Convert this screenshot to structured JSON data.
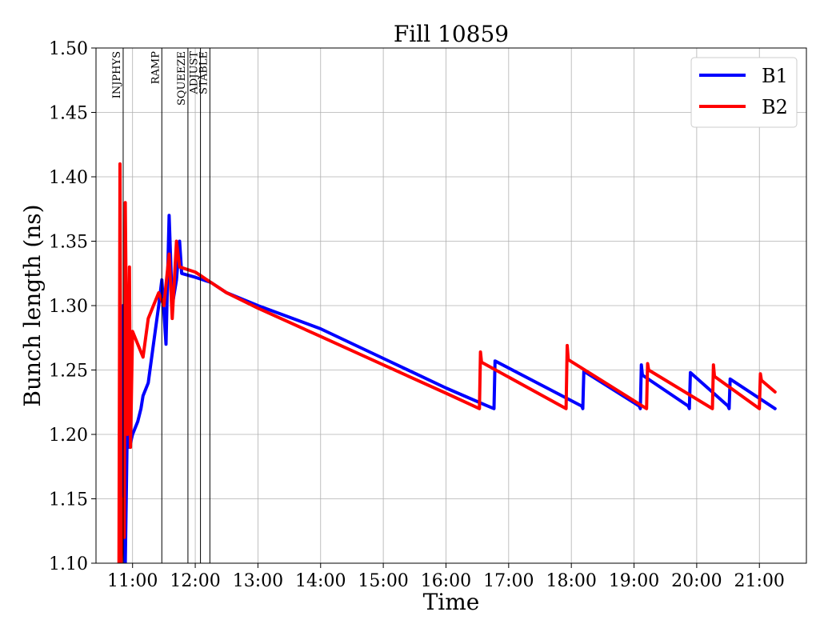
{
  "chart_data": {
    "type": "line",
    "title": "Fill 10859",
    "xlabel": "Time",
    "ylabel": "Bunch length (ns)",
    "xlim": [
      "10:25",
      "21:45"
    ],
    "ylim": [
      1.1,
      1.5
    ],
    "x_ticks": [
      "11:00",
      "12:00",
      "13:00",
      "14:00",
      "15:00",
      "16:00",
      "17:00",
      "18:00",
      "19:00",
      "20:00",
      "21:00"
    ],
    "y_ticks": [
      "1.10",
      "1.15",
      "1.20",
      "1.25",
      "1.30",
      "1.35",
      "1.40",
      "1.45",
      "1.50"
    ],
    "grid": true,
    "legend": "top-right",
    "phases": [
      {
        "label": "INJPHYS",
        "time": "10:51"
      },
      {
        "label": "RAMP",
        "time": "11:28"
      },
      {
        "label": "SQUEEZE",
        "time": "11:53"
      },
      {
        "label": "ADJUST",
        "time": "12:05"
      },
      {
        "label": "STABLE",
        "time": "12:14"
      }
    ],
    "series": [
      {
        "name": "B1",
        "color": "#0000ff",
        "points": [
          [
            "10:48",
            1.1
          ],
          [
            "10:50",
            1.16
          ],
          [
            "10:51",
            1.3
          ],
          [
            "10:52",
            1.12
          ],
          [
            "10:53",
            1.1
          ],
          [
            "10:55",
            1.21
          ],
          [
            "10:57",
            1.19
          ],
          [
            "11:00",
            1.2
          ],
          [
            "11:05",
            1.21
          ],
          [
            "11:08",
            1.22
          ],
          [
            "11:10",
            1.23
          ],
          [
            "11:15",
            1.24
          ],
          [
            "11:20",
            1.27
          ],
          [
            "11:25",
            1.3
          ],
          [
            "11:28",
            1.32
          ],
          [
            "11:32",
            1.27
          ],
          [
            "11:35",
            1.37
          ],
          [
            "11:38",
            1.3
          ],
          [
            "11:42",
            1.32
          ],
          [
            "11:45",
            1.35
          ],
          [
            "11:47",
            1.325
          ],
          [
            "12:00",
            1.322
          ],
          [
            "12:15",
            1.318
          ],
          [
            "12:30",
            1.31
          ],
          [
            "13:00",
            1.3
          ],
          [
            "14:00",
            1.282
          ],
          [
            "15:00",
            1.259
          ],
          [
            "16:00",
            1.236
          ],
          [
            "16:40",
            1.222
          ],
          [
            "16:46",
            1.22
          ],
          [
            "16:47",
            1.257
          ],
          [
            "18:10",
            1.222
          ],
          [
            "18:11",
            1.22
          ],
          [
            "18:12",
            1.249
          ],
          [
            "19:05",
            1.222
          ],
          [
            "19:06",
            1.22
          ],
          [
            "19:07",
            1.254
          ],
          [
            "19:08",
            1.246
          ],
          [
            "19:52",
            1.222
          ],
          [
            "19:53",
            1.22
          ],
          [
            "19:54",
            1.248
          ],
          [
            "20:30",
            1.222
          ],
          [
            "20:31",
            1.22
          ],
          [
            "20:32",
            1.243
          ],
          [
            "21:15",
            1.22
          ]
        ]
      },
      {
        "name": "B2",
        "color": "#ff0000",
        "points": [
          [
            "10:47",
            1.1
          ],
          [
            "10:48",
            1.41
          ],
          [
            "10:49",
            1.1
          ],
          [
            "10:50",
            1.15
          ],
          [
            "10:52",
            1.12
          ],
          [
            "10:53",
            1.38
          ],
          [
            "10:55",
            1.2
          ],
          [
            "10:57",
            1.33
          ],
          [
            "10:58",
            1.19
          ],
          [
            "11:00",
            1.28
          ],
          [
            "11:05",
            1.27
          ],
          [
            "11:10",
            1.26
          ],
          [
            "11:15",
            1.29
          ],
          [
            "11:20",
            1.3
          ],
          [
            "11:25",
            1.31
          ],
          [
            "11:30",
            1.3
          ],
          [
            "11:35",
            1.34
          ],
          [
            "11:38",
            1.29
          ],
          [
            "11:42",
            1.35
          ],
          [
            "11:45",
            1.33
          ],
          [
            "12:00",
            1.326
          ],
          [
            "12:15",
            1.318
          ],
          [
            "12:30",
            1.31
          ],
          [
            "13:00",
            1.298
          ],
          [
            "14:00",
            1.276
          ],
          [
            "15:00",
            1.254
          ],
          [
            "16:00",
            1.232
          ],
          [
            "16:32",
            1.22
          ],
          [
            "16:33",
            1.264
          ],
          [
            "16:34",
            1.256
          ],
          [
            "17:55",
            1.22
          ],
          [
            "17:56",
            1.269
          ],
          [
            "17:57",
            1.258
          ],
          [
            "19:12",
            1.22
          ],
          [
            "19:13",
            1.255
          ],
          [
            "19:14",
            1.25
          ],
          [
            "20:15",
            1.22
          ],
          [
            "20:16",
            1.254
          ],
          [
            "20:17",
            1.245
          ],
          [
            "21:00",
            1.22
          ],
          [
            "21:01",
            1.247
          ],
          [
            "21:02",
            1.242
          ],
          [
            "21:15",
            1.233
          ]
        ]
      }
    ]
  }
}
